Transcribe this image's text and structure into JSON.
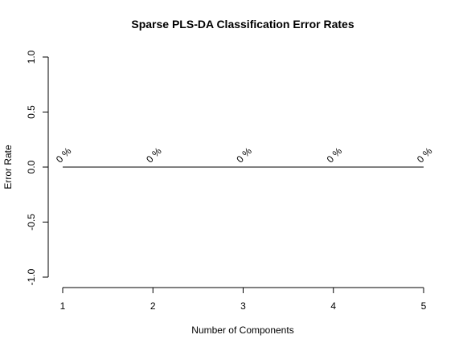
{
  "chart_data": {
    "type": "line",
    "title": "Sparse PLS-DA Classification Error Rates",
    "xlabel": "Number of Components",
    "ylabel": "Error Rate",
    "x": [
      1,
      2,
      3,
      4,
      5
    ],
    "x_tick_labels": [
      "1",
      "2",
      "3",
      "4",
      "5"
    ],
    "y_tick_labels": [
      "-1.0",
      "-0.5",
      "0.0",
      "0.5",
      "1.0"
    ],
    "y_ticks": [
      -1.0,
      -0.5,
      0.0,
      0.5,
      1.0
    ],
    "ylim": [
      -1.0,
      1.0
    ],
    "xlim": [
      1,
      5
    ],
    "series": [
      {
        "values": [
          0,
          0,
          0,
          0,
          0
        ],
        "color": "#000000"
      }
    ],
    "data_labels": [
      "0 %",
      "0 %",
      "0 %",
      "0 %",
      "0 %"
    ],
    "grid": false,
    "legend": "none"
  }
}
